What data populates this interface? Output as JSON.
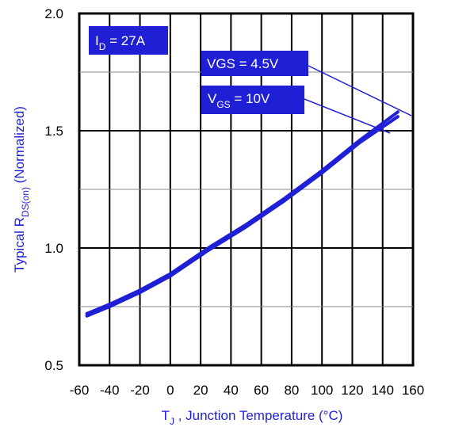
{
  "chart_data": {
    "type": "line",
    "title": "",
    "xlabel": "T",
    "xlabel_sub": "J",
    "xlabel_rest": " , Junction Temperature (°C)",
    "ylabel": "Typical R",
    "ylabel_sub": "DS(on)",
    "ylabel_rest": " (Normalized)",
    "xlim": [
      -60,
      160
    ],
    "ylim": [
      0.5,
      2.0
    ],
    "xticks": [
      "-60",
      "-40",
      "-20",
      "0",
      "20",
      "40",
      "60",
      "80",
      "100",
      "120",
      "140",
      "160"
    ],
    "yticks": [
      "0.5",
      "1.0",
      "1.5",
      "2.0"
    ],
    "grid": true,
    "series": [
      {
        "name": "VGS = 4.5V",
        "x": [
          -55,
          -40,
          -20,
          0,
          25,
          50,
          75,
          100,
          125,
          150
        ],
        "y": [
          0.72,
          0.76,
          0.82,
          0.89,
          1.0,
          1.1,
          1.21,
          1.33,
          1.46,
          1.58
        ]
      },
      {
        "name": "VGS = 10V",
        "x": [
          -55,
          -40,
          -20,
          0,
          25,
          50,
          75,
          100,
          125,
          150
        ],
        "y": [
          0.71,
          0.75,
          0.81,
          0.88,
          0.99,
          1.09,
          1.2,
          1.32,
          1.45,
          1.56
        ]
      }
    ],
    "annotations": {
      "id": {
        "main": "I",
        "sub": "D",
        "rest": " = 27A"
      },
      "vgs45": {
        "text": "VGS = 4.5V"
      },
      "vgs10": {
        "main": "V",
        "sub": "GS",
        "rest": " = 10V"
      }
    },
    "colors": {
      "curve": "#1f1fd6",
      "axis_title": "#1f1fd6",
      "frame": "#000000"
    }
  }
}
